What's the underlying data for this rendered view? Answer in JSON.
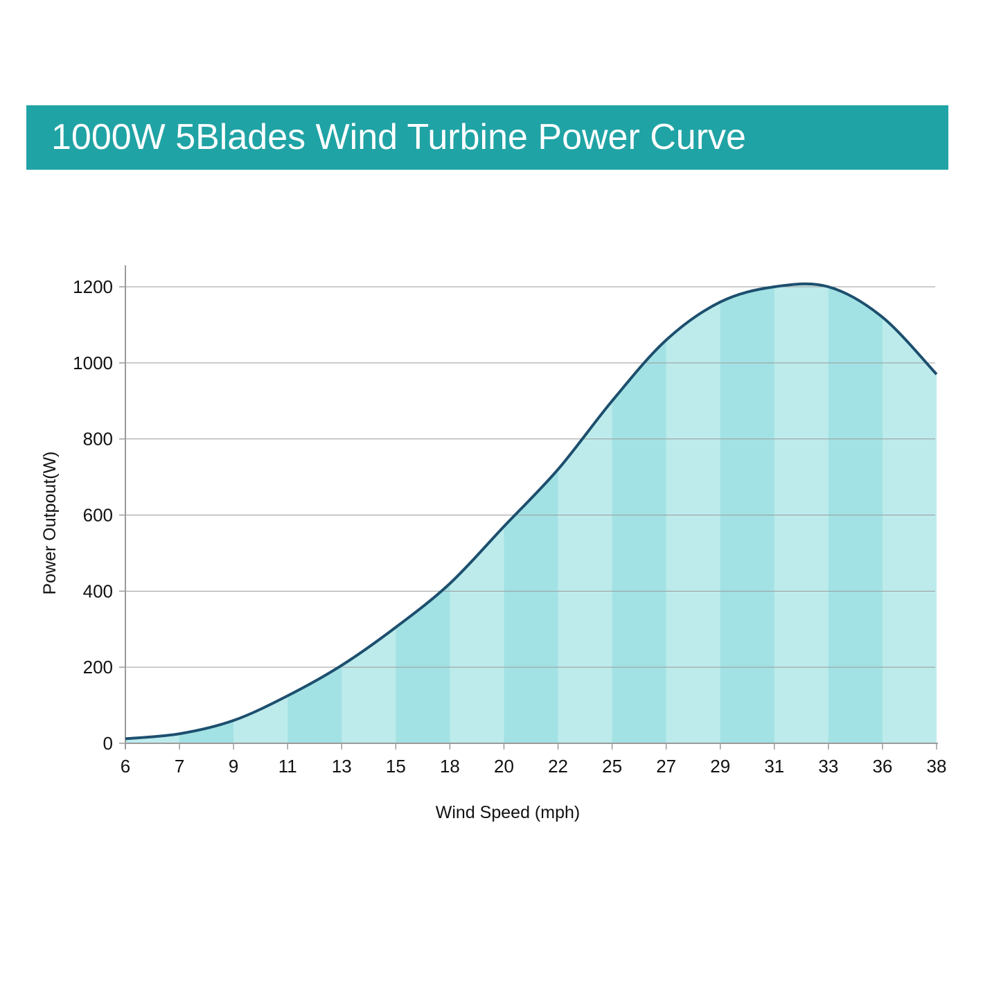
{
  "chart_data": {
    "type": "area",
    "title": "1000W 5Blades Wind Turbine Power Curve",
    "xlabel": "Wind Speed (mph)",
    "ylabel": "Power Outpout(W)",
    "categories": [
      "6",
      "7",
      "9",
      "11",
      "13",
      "15",
      "18",
      "20",
      "22",
      "25",
      "27",
      "29",
      "31",
      "33",
      "36",
      "38"
    ],
    "yticks": [
      "0",
      "200",
      "400",
      "600",
      "800",
      "1000",
      "1200"
    ],
    "ylim": [
      0,
      1200
    ],
    "grid": true,
    "series": [
      {
        "values": [
          12,
          25,
          60,
          125,
          205,
          305,
          420,
          570,
          720,
          900,
          1060,
          1160,
          1200,
          1200,
          1120,
          970
        ]
      }
    ],
    "colors": {
      "line": "#1d4f6e",
      "band_light": "#bdebec",
      "band_dark": "#a3e2e4",
      "banner": "#20a3a5",
      "grid": "#9a9a9a"
    }
  }
}
